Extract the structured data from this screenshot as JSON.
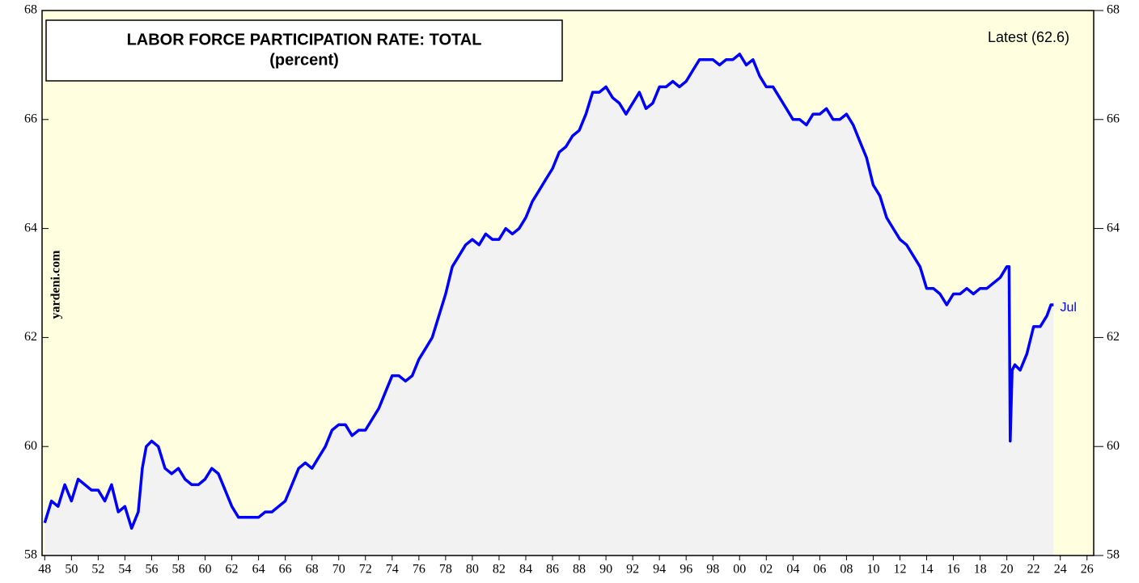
{
  "chart_data": {
    "type": "line",
    "title": "LABOR FORCE PARTICIPATION RATE: TOTAL",
    "subtitle": "(percent)",
    "annotation": "Latest (62.6)",
    "end_label": "Jul",
    "source": "yardeni.com",
    "xlim": [
      1947.8,
      2026.5
    ],
    "ylim": [
      58,
      68
    ],
    "yticks": [
      58,
      60,
      62,
      64,
      66,
      68
    ],
    "xticks": [
      {
        "value": 1948,
        "label": "48"
      },
      {
        "value": 1950,
        "label": "50"
      },
      {
        "value": 1952,
        "label": "52"
      },
      {
        "value": 1954,
        "label": "54"
      },
      {
        "value": 1956,
        "label": "56"
      },
      {
        "value": 1958,
        "label": "58"
      },
      {
        "value": 1960,
        "label": "60"
      },
      {
        "value": 1962,
        "label": "62"
      },
      {
        "value": 1964,
        "label": "64"
      },
      {
        "value": 1966,
        "label": "66"
      },
      {
        "value": 1968,
        "label": "68"
      },
      {
        "value": 1970,
        "label": "70"
      },
      {
        "value": 1972,
        "label": "72"
      },
      {
        "value": 1974,
        "label": "74"
      },
      {
        "value": 1976,
        "label": "76"
      },
      {
        "value": 1978,
        "label": "78"
      },
      {
        "value": 1980,
        "label": "80"
      },
      {
        "value": 1982,
        "label": "82"
      },
      {
        "value": 1984,
        "label": "84"
      },
      {
        "value": 1986,
        "label": "86"
      },
      {
        "value": 1988,
        "label": "88"
      },
      {
        "value": 1990,
        "label": "90"
      },
      {
        "value": 1992,
        "label": "92"
      },
      {
        "value": 1994,
        "label": "94"
      },
      {
        "value": 1996,
        "label": "96"
      },
      {
        "value": 1998,
        "label": "98"
      },
      {
        "value": 2000,
        "label": "00"
      },
      {
        "value": 2002,
        "label": "02"
      },
      {
        "value": 2004,
        "label": "04"
      },
      {
        "value": 2006,
        "label": "06"
      },
      {
        "value": 2008,
        "label": "08"
      },
      {
        "value": 2010,
        "label": "10"
      },
      {
        "value": 2012,
        "label": "12"
      },
      {
        "value": 2014,
        "label": "14"
      },
      {
        "value": 2016,
        "label": "16"
      },
      {
        "value": 2018,
        "label": "18"
      },
      {
        "value": 2020,
        "label": "20"
      },
      {
        "value": 2022,
        "label": "22"
      },
      {
        "value": 2024,
        "label": "24"
      },
      {
        "value": 2026,
        "label": "26"
      }
    ],
    "series": [
      {
        "name": "Labor force participation rate",
        "color": "#0000ff",
        "x": [
          1948,
          1948.5,
          1949,
          1949.5,
          1950,
          1950.5,
          1951,
          1951.5,
          1952,
          1952.5,
          1953,
          1953.5,
          1954,
          1954.5,
          1955,
          1955.3,
          1955.6,
          1956,
          1956.5,
          1957,
          1957.5,
          1958,
          1958.5,
          1959,
          1959.5,
          1960,
          1960.5,
          1961,
          1961.5,
          1962,
          1962.5,
          1963,
          1963.5,
          1964,
          1964.5,
          1965,
          1965.5,
          1966,
          1966.5,
          1967,
          1967.5,
          1968,
          1968.5,
          1969,
          1969.5,
          1970,
          1970.5,
          1971,
          1971.5,
          1972,
          1972.5,
          1973,
          1973.5,
          1974,
          1974.5,
          1975,
          1975.5,
          1976,
          1976.5,
          1977,
          1977.5,
          1978,
          1978.5,
          1979,
          1979.5,
          1980,
          1980.5,
          1981,
          1981.5,
          1982,
          1982.5,
          1983,
          1983.5,
          1984,
          1984.5,
          1985,
          1985.5,
          1986,
          1986.5,
          1987,
          1987.5,
          1988,
          1988.5,
          1989,
          1989.5,
          1990,
          1990.5,
          1991,
          1991.5,
          1992,
          1992.5,
          1993,
          1993.5,
          1994,
          1994.5,
          1995,
          1995.5,
          1996,
          1996.5,
          1997,
          1997.5,
          1998,
          1998.5,
          1999,
          1999.5,
          2000,
          2000.5,
          2001,
          2001.5,
          2002,
          2002.5,
          2003,
          2003.5,
          2004,
          2004.5,
          2005,
          2005.5,
          2006,
          2006.5,
          2007,
          2007.5,
          2008,
          2008.5,
          2009,
          2009.5,
          2010,
          2010.5,
          2011,
          2011.5,
          2012,
          2012.5,
          2013,
          2013.5,
          2014,
          2014.5,
          2015,
          2015.5,
          2016,
          2016.5,
          2017,
          2017.5,
          2018,
          2018.5,
          2019,
          2019.5,
          2020,
          2020.17,
          2020.25,
          2020.4,
          2020.6,
          2021,
          2021.5,
          2022,
          2022.5,
          2023,
          2023.3,
          2023.5
        ],
        "values": [
          58.6,
          59.0,
          58.9,
          59.3,
          59.0,
          59.4,
          59.3,
          59.2,
          59.2,
          59.0,
          59.3,
          58.8,
          58.9,
          58.5,
          58.8,
          59.6,
          60.0,
          60.1,
          60.0,
          59.6,
          59.5,
          59.6,
          59.4,
          59.3,
          59.3,
          59.4,
          59.6,
          59.5,
          59.2,
          58.9,
          58.7,
          58.7,
          58.7,
          58.7,
          58.8,
          58.8,
          58.9,
          59.0,
          59.3,
          59.6,
          59.7,
          59.6,
          59.8,
          60.0,
          60.3,
          60.4,
          60.4,
          60.2,
          60.3,
          60.3,
          60.5,
          60.7,
          61.0,
          61.3,
          61.3,
          61.2,
          61.3,
          61.6,
          61.8,
          62.0,
          62.4,
          62.8,
          63.3,
          63.5,
          63.7,
          63.8,
          63.7,
          63.9,
          63.8,
          63.8,
          64.0,
          63.9,
          64.0,
          64.2,
          64.5,
          64.7,
          64.9,
          65.1,
          65.4,
          65.5,
          65.7,
          65.8,
          66.1,
          66.5,
          66.5,
          66.6,
          66.4,
          66.3,
          66.1,
          66.3,
          66.5,
          66.2,
          66.3,
          66.6,
          66.6,
          66.7,
          66.6,
          66.7,
          66.9,
          67.1,
          67.1,
          67.1,
          67.0,
          67.1,
          67.1,
          67.2,
          67.0,
          67.1,
          66.8,
          66.6,
          66.6,
          66.4,
          66.2,
          66.0,
          66.0,
          65.9,
          66.1,
          66.1,
          66.2,
          66.0,
          66.0,
          66.1,
          65.9,
          65.6,
          65.3,
          64.8,
          64.6,
          64.2,
          64.0,
          63.8,
          63.7,
          63.5,
          63.3,
          62.9,
          62.9,
          62.8,
          62.6,
          62.8,
          62.8,
          62.9,
          62.8,
          62.9,
          62.9,
          63.0,
          63.1,
          63.3,
          63.3,
          60.1,
          61.4,
          61.5,
          61.4,
          61.7,
          62.2,
          62.2,
          62.4,
          62.6,
          62.6
        ]
      }
    ]
  }
}
